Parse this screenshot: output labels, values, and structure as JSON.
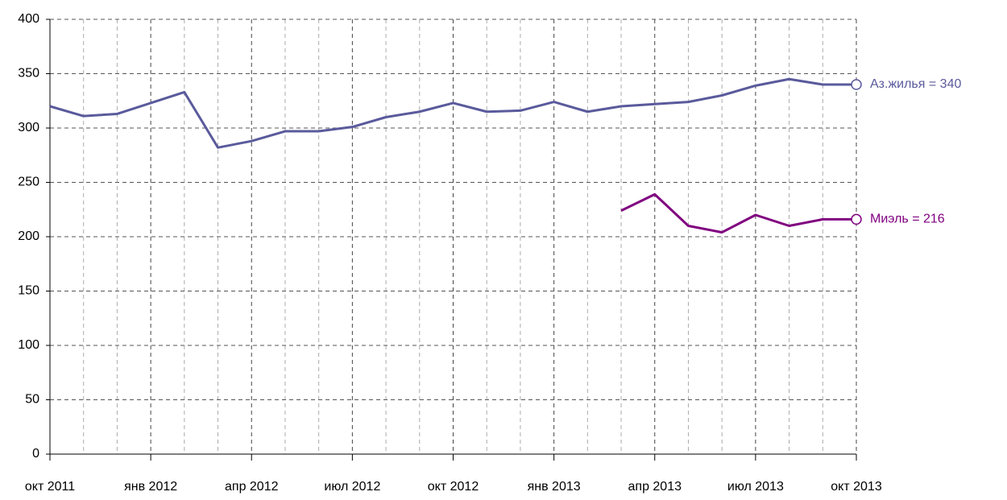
{
  "chart_data": {
    "type": "line",
    "categories": [
      "окт 2011",
      null,
      null,
      "янв 2012",
      null,
      null,
      "апр 2012",
      null,
      null,
      "июл 2012",
      null,
      null,
      "окт 2012",
      null,
      null,
      "янв 2013",
      null,
      null,
      "апр 2013",
      null,
      null,
      "июл 2013",
      null,
      null,
      "окт 2013"
    ],
    "series": [
      {
        "name": "Аз.жилья",
        "end_label": "Аз.жилья = 340",
        "color": "#5a5a9c",
        "values": [
          320,
          311,
          313,
          323,
          333,
          282,
          288,
          297,
          297,
          301,
          310,
          315,
          323,
          315,
          316,
          324,
          315,
          320,
          322,
          324,
          330,
          339,
          345,
          340,
          340
        ]
      },
      {
        "name": "Миэль",
        "end_label": "Миэль = 216",
        "color": "#800080",
        "values": [
          null,
          null,
          null,
          null,
          null,
          null,
          null,
          null,
          null,
          null,
          null,
          null,
          null,
          null,
          null,
          null,
          null,
          224,
          239,
          210,
          204,
          220,
          210,
          216,
          216
        ]
      }
    ],
    "ylim": [
      0,
      400
    ],
    "yticks": [
      0,
      50,
      100,
      150,
      200,
      250,
      300,
      350,
      400
    ],
    "grid": true
  }
}
